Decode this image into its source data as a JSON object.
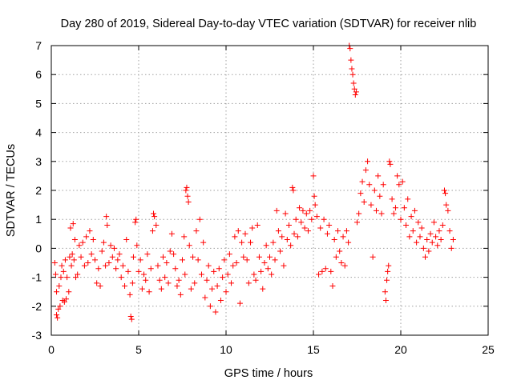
{
  "chart_data": {
    "type": "scatter",
    "title": "Day 280 of 2019, Sidereal Day-to-day VTEC variation (SDTVAR) for receiver nlib",
    "xlabel": "GPS time / hours",
    "ylabel": "SDTVAR / TECUs",
    "xlim": [
      0,
      25
    ],
    "ylim": [
      -3,
      7
    ],
    "xticks": [
      0,
      5,
      10,
      15,
      20,
      25
    ],
    "yticks": [
      -3,
      -2,
      -1,
      0,
      1,
      2,
      3,
      4,
      5,
      6,
      7
    ],
    "grid": true,
    "marker": "+",
    "color": "#ff0000",
    "series": [
      {
        "name": "SDTVAR",
        "points": [
          [
            0.2,
            -0.5
          ],
          [
            0.25,
            -0.9
          ],
          [
            0.3,
            -1.5
          ],
          [
            0.3,
            -2.3
          ],
          [
            0.35,
            -2.4
          ],
          [
            0.4,
            -2.1
          ],
          [
            0.45,
            -1.3
          ],
          [
            0.5,
            -2.0
          ],
          [
            0.55,
            -1.0
          ],
          [
            0.6,
            -0.6
          ],
          [
            0.65,
            -1.8
          ],
          [
            0.7,
            -0.8
          ],
          [
            0.75,
            -1.85
          ],
          [
            0.8,
            -0.4
          ],
          [
            0.85,
            -1.75
          ],
          [
            0.9,
            -1.0
          ],
          [
            1.0,
            -1.5
          ],
          [
            1.05,
            -0.3
          ],
          [
            1.1,
            0.7
          ],
          [
            1.15,
            -0.6
          ],
          [
            1.2,
            -0.2
          ],
          [
            1.25,
            0.85
          ],
          [
            1.3,
            -0.4
          ],
          [
            1.35,
            0.3
          ],
          [
            1.4,
            -1.0
          ],
          [
            1.5,
            -0.9
          ],
          [
            1.6,
            0.1
          ],
          [
            1.7,
            -0.3
          ],
          [
            1.8,
            0.2
          ],
          [
            1.9,
            -0.6
          ],
          [
            2.0,
            0.4
          ],
          [
            2.1,
            -0.5
          ],
          [
            2.2,
            0.6
          ],
          [
            2.3,
            -0.2
          ],
          [
            2.4,
            0.3
          ],
          [
            2.5,
            -0.4
          ],
          [
            2.6,
            -1.2
          ],
          [
            2.7,
            -0.7
          ],
          [
            2.8,
            -1.3
          ],
          [
            2.9,
            -0.1
          ],
          [
            3.0,
            0.2
          ],
          [
            3.1,
            -0.6
          ],
          [
            3.15,
            1.1
          ],
          [
            3.2,
            0.8
          ],
          [
            3.3,
            -0.5
          ],
          [
            3.4,
            0.1
          ],
          [
            3.5,
            -0.3
          ],
          [
            3.6,
            0.0
          ],
          [
            3.7,
            -0.7
          ],
          [
            3.8,
            -0.4
          ],
          [
            3.9,
            -0.2
          ],
          [
            4.0,
            -1.0
          ],
          [
            4.1,
            -0.6
          ],
          [
            4.2,
            -1.3
          ],
          [
            4.3,
            0.3
          ],
          [
            4.4,
            -0.8
          ],
          [
            4.5,
            -1.6
          ],
          [
            4.55,
            -2.35
          ],
          [
            4.6,
            -2.45
          ],
          [
            4.65,
            -1.2
          ],
          [
            4.7,
            -0.3
          ],
          [
            4.8,
            0.9
          ],
          [
            4.85,
            1.0
          ],
          [
            4.9,
            0.1
          ],
          [
            5.0,
            -0.8
          ],
          [
            5.1,
            -0.4
          ],
          [
            5.2,
            -1.4
          ],
          [
            5.3,
            -0.9
          ],
          [
            5.4,
            -1.1
          ],
          [
            5.5,
            -0.2
          ],
          [
            5.6,
            -1.5
          ],
          [
            5.7,
            -0.7
          ],
          [
            5.8,
            0.6
          ],
          [
            5.85,
            1.2
          ],
          [
            5.9,
            1.1
          ],
          [
            6.0,
            0.8
          ],
          [
            6.1,
            -0.6
          ],
          [
            6.2,
            -1.1
          ],
          [
            6.3,
            -1.4
          ],
          [
            6.4,
            -0.3
          ],
          [
            6.5,
            -1.0
          ],
          [
            6.6,
            -0.5
          ],
          [
            6.7,
            -1.2
          ],
          [
            6.8,
            -0.1
          ],
          [
            6.9,
            0.5
          ],
          [
            7.0,
            -0.2
          ],
          [
            7.1,
            -0.7
          ],
          [
            7.2,
            -1.3
          ],
          [
            7.3,
            -1.1
          ],
          [
            7.4,
            -1.6
          ],
          [
            7.5,
            -0.4
          ],
          [
            7.6,
            0.4
          ],
          [
            7.65,
            -0.9
          ],
          [
            7.7,
            2.0
          ],
          [
            7.75,
            2.1
          ],
          [
            7.8,
            1.8
          ],
          [
            7.85,
            1.6
          ],
          [
            7.9,
            0.1
          ],
          [
            8.0,
            -1.4
          ],
          [
            8.1,
            -0.3
          ],
          [
            8.2,
            -1.2
          ],
          [
            8.3,
            0.6
          ],
          [
            8.4,
            -0.4
          ],
          [
            8.5,
            1.0
          ],
          [
            8.6,
            -0.9
          ],
          [
            8.7,
            0.2
          ],
          [
            8.8,
            -1.7
          ],
          [
            8.9,
            -1.1
          ],
          [
            9.0,
            -0.6
          ],
          [
            9.1,
            -2.0
          ],
          [
            9.2,
            -1.4
          ],
          [
            9.3,
            -0.8
          ],
          [
            9.4,
            -2.2
          ],
          [
            9.5,
            -1.3
          ],
          [
            9.6,
            -0.7
          ],
          [
            9.7,
            -1.8
          ],
          [
            9.8,
            -1.0
          ],
          [
            9.9,
            -0.4
          ],
          [
            10.0,
            -1.5
          ],
          [
            10.1,
            -0.9
          ],
          [
            10.2,
            -0.2
          ],
          [
            10.3,
            -1.2
          ],
          [
            10.4,
            -0.6
          ],
          [
            10.5,
            0.4
          ],
          [
            10.6,
            -0.5
          ],
          [
            10.7,
            0.6
          ],
          [
            10.8,
            -1.9
          ],
          [
            10.9,
            0.2
          ],
          [
            11.0,
            -0.3
          ],
          [
            11.1,
            0.5
          ],
          [
            11.2,
            -0.4
          ],
          [
            11.3,
            -1.2
          ],
          [
            11.4,
            0.2
          ],
          [
            11.5,
            0.7
          ],
          [
            11.6,
            -0.9
          ],
          [
            11.7,
            -1.1
          ],
          [
            11.8,
            0.8
          ],
          [
            11.9,
            -0.3
          ],
          [
            12.0,
            -0.8
          ],
          [
            12.1,
            -1.4
          ],
          [
            12.2,
            -0.5
          ],
          [
            12.3,
            0.1
          ],
          [
            12.4,
            -0.7
          ],
          [
            12.5,
            -0.3
          ],
          [
            12.6,
            -0.9
          ],
          [
            12.7,
            0.2
          ],
          [
            12.8,
            -0.4
          ],
          [
            12.9,
            1.3
          ],
          [
            13.0,
            0.6
          ],
          [
            13.1,
            -0.1
          ],
          [
            13.2,
            0.4
          ],
          [
            13.3,
            -0.6
          ],
          [
            13.4,
            1.2
          ],
          [
            13.5,
            0.3
          ],
          [
            13.6,
            0.8
          ],
          [
            13.7,
            0.1
          ],
          [
            13.8,
            2.1
          ],
          [
            13.85,
            2.0
          ],
          [
            13.9,
            0.5
          ],
          [
            14.0,
            1.0
          ],
          [
            14.1,
            0.4
          ],
          [
            14.2,
            1.4
          ],
          [
            14.3,
            0.9
          ],
          [
            14.4,
            1.3
          ],
          [
            14.5,
            0.7
          ],
          [
            14.6,
            1.2
          ],
          [
            14.7,
            0.6
          ],
          [
            14.8,
            1.3
          ],
          [
            14.9,
            1.0
          ],
          [
            15.0,
            2.5
          ],
          [
            15.05,
            1.8
          ],
          [
            15.1,
            1.5
          ],
          [
            15.2,
            1.1
          ],
          [
            15.3,
            -0.9
          ],
          [
            15.4,
            0.7
          ],
          [
            15.5,
            -0.8
          ],
          [
            15.6,
            1.0
          ],
          [
            15.7,
            -0.7
          ],
          [
            15.8,
            0.5
          ],
          [
            15.9,
            0.8
          ],
          [
            16.0,
            -0.8
          ],
          [
            16.1,
            -1.3
          ],
          [
            16.2,
            0.3
          ],
          [
            16.3,
            -0.3
          ],
          [
            16.4,
            0.6
          ],
          [
            16.5,
            -0.1
          ],
          [
            16.6,
            -0.5
          ],
          [
            16.7,
            0.4
          ],
          [
            16.8,
            -0.6
          ],
          [
            16.9,
            0.6
          ],
          [
            17.0,
            0.2
          ],
          [
            17.05,
            7.0
          ],
          [
            17.1,
            6.9
          ],
          [
            17.15,
            6.5
          ],
          [
            17.2,
            6.2
          ],
          [
            17.25,
            6.0
          ],
          [
            17.3,
            5.7
          ],
          [
            17.35,
            5.5
          ],
          [
            17.4,
            5.3
          ],
          [
            17.45,
            5.4
          ],
          [
            17.5,
            0.9
          ],
          [
            17.6,
            1.2
          ],
          [
            17.7,
            1.9
          ],
          [
            17.8,
            2.3
          ],
          [
            17.9,
            1.6
          ],
          [
            18.0,
            2.7
          ],
          [
            18.1,
            3.0
          ],
          [
            18.2,
            2.2
          ],
          [
            18.3,
            1.5
          ],
          [
            18.4,
            -0.3
          ],
          [
            18.5,
            2.0
          ],
          [
            18.6,
            1.3
          ],
          [
            18.7,
            2.5
          ],
          [
            18.8,
            1.8
          ],
          [
            18.9,
            1.2
          ],
          [
            19.0,
            2.2
          ],
          [
            19.1,
            -1.5
          ],
          [
            19.15,
            -1.8
          ],
          [
            19.2,
            -1.1
          ],
          [
            19.25,
            -0.8
          ],
          [
            19.3,
            -0.6
          ],
          [
            19.35,
            3.0
          ],
          [
            19.4,
            2.9
          ],
          [
            19.5,
            1.7
          ],
          [
            19.6,
            1.2
          ],
          [
            19.7,
            1.4
          ],
          [
            19.8,
            2.5
          ],
          [
            19.9,
            2.2
          ],
          [
            20.0,
            1.0
          ],
          [
            20.1,
            2.3
          ],
          [
            20.2,
            1.4
          ],
          [
            20.3,
            0.8
          ],
          [
            20.4,
            1.7
          ],
          [
            20.5,
            0.4
          ],
          [
            20.6,
            1.1
          ],
          [
            20.7,
            0.6
          ],
          [
            20.8,
            1.3
          ],
          [
            20.9,
            0.2
          ],
          [
            21.0,
            0.9
          ],
          [
            21.1,
            0.4
          ],
          [
            21.2,
            0.7
          ],
          [
            21.3,
            0.0
          ],
          [
            21.4,
            -0.3
          ],
          [
            21.5,
            0.3
          ],
          [
            21.6,
            -0.1
          ],
          [
            21.7,
            0.5
          ],
          [
            21.8,
            0.2
          ],
          [
            21.9,
            0.9
          ],
          [
            22.0,
            0.4
          ],
          [
            22.1,
            0.1
          ],
          [
            22.2,
            0.6
          ],
          [
            22.3,
            0.3
          ],
          [
            22.4,
            0.8
          ],
          [
            22.5,
            2.0
          ],
          [
            22.55,
            1.9
          ],
          [
            22.6,
            1.5
          ],
          [
            22.7,
            1.3
          ],
          [
            22.8,
            0.6
          ],
          [
            22.9,
            0.0
          ],
          [
            23.0,
            0.3
          ]
        ]
      }
    ]
  }
}
